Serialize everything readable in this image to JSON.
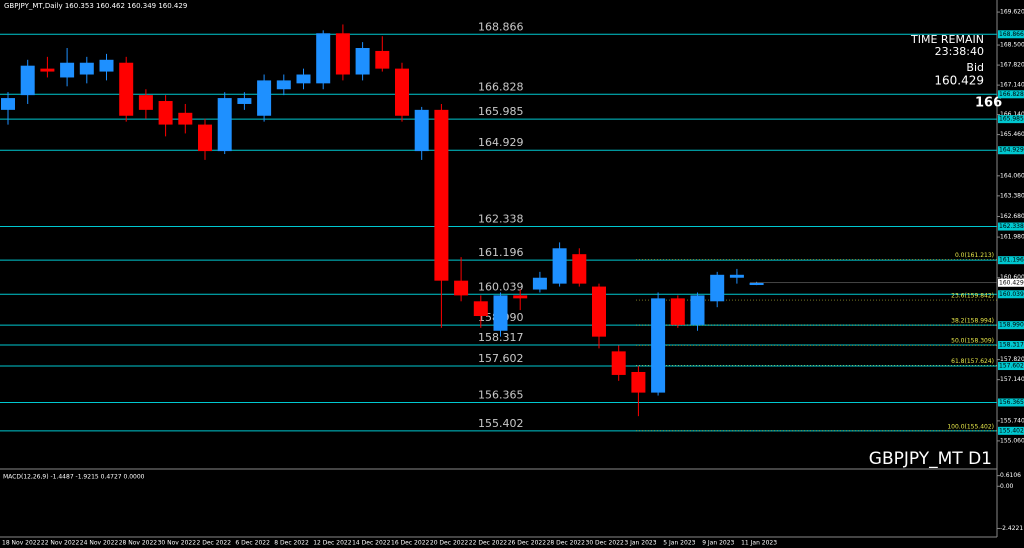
{
  "chart_data": {
    "type": "candlestick",
    "title": "GBPJPY_MT,Daily  160.353 160.462 160.349 160.429",
    "symbol_label": "GBPJPY_MT D1",
    "time_remain_label": "TIME REMAIN",
    "time_remain": "23:38:40",
    "bid_label": "Bid",
    "bid": 160.429,
    "price_badge": "166",
    "up_color": "#1e90ff",
    "down_color": "#ff0000",
    "level_color": "#00c8d0",
    "fib_color": "#e8e84a",
    "ylim": [
      154.14,
      170.03
    ],
    "yticks": [
      {
        "value": 169.62,
        "label": "169.620"
      },
      {
        "value": 168.5,
        "label": "168.500"
      },
      {
        "value": 167.82,
        "label": "167.820"
      },
      {
        "value": 167.14,
        "label": "167.140"
      },
      {
        "value": 166.14,
        "label": "166.140"
      },
      {
        "value": 165.46,
        "label": "165.460"
      },
      {
        "value": 164.06,
        "label": "164.060"
      },
      {
        "value": 163.38,
        "label": "163.380"
      },
      {
        "value": 162.68,
        "label": "162.680"
      },
      {
        "value": 161.98,
        "label": "161.980"
      },
      {
        "value": 160.6,
        "label": "160.600"
      },
      {
        "value": 157.82,
        "label": "157.820"
      },
      {
        "value": 157.14,
        "label": "157.140"
      },
      {
        "value": 155.74,
        "label": "155.740"
      },
      {
        "value": 155.06,
        "label": "155.060"
      }
    ],
    "levels": [
      168.866,
      166.828,
      165.985,
      164.929,
      162.338,
      161.196,
      160.039,
      {
        "value": 158.99,
        "label": "158.990"
      },
      158.317,
      157.602,
      156.365,
      155.402
    ],
    "fib": [
      {
        "level": 161.213,
        "label": "0.0(161.213)"
      },
      {
        "level": 159.842,
        "label": "23.6(159.842)"
      },
      {
        "level": 158.994,
        "label": "38.2(158.994)"
      },
      {
        "level": 158.309,
        "label": "50.0(158.309)"
      },
      {
        "level": 157.624,
        "label": "61.8(157.624)"
      },
      {
        "level": 155.402,
        "label": "100.0(155.402)"
      }
    ],
    "open": [
      166.3,
      166.8,
      167.7,
      167.4,
      167.5,
      167.6,
      167.9,
      166.8,
      166.6,
      166.2,
      165.8,
      164.9,
      166.5,
      166.1,
      167.0,
      167.2,
      167.2,
      168.9,
      167.5,
      168.3,
      167.7,
      164.9,
      166.3,
      160.5,
      159.8,
      158.8,
      160.0,
      160.2,
      160.4,
      161.4,
      160.3,
      158.1,
      157.4,
      156.7,
      159.9,
      159.0,
      159.8,
      160.6,
      160.353
    ],
    "high": [
      166.9,
      168.0,
      168.1,
      168.4,
      168.1,
      168.2,
      168.1,
      167.0,
      166.8,
      166.5,
      166.0,
      166.9,
      166.9,
      167.5,
      167.5,
      167.7,
      169.0,
      169.2,
      168.6,
      168.8,
      167.9,
      166.4,
      166.5,
      161.3,
      160.0,
      160.1,
      160.2,
      160.8,
      161.8,
      161.6,
      160.4,
      158.3,
      157.6,
      160.1,
      160.0,
      160.1,
      160.8,
      160.9,
      160.462
    ],
    "low": [
      165.8,
      166.5,
      167.4,
      167.1,
      167.2,
      167.3,
      165.9,
      166.0,
      165.4,
      165.5,
      164.6,
      164.8,
      166.3,
      165.9,
      166.8,
      167.0,
      167.0,
      167.3,
      167.3,
      167.6,
      165.9,
      164.6,
      158.9,
      159.8,
      158.9,
      158.6,
      159.5,
      160.1,
      160.3,
      160.3,
      158.2,
      157.1,
      155.9,
      156.6,
      158.9,
      158.8,
      159.6,
      160.4,
      160.349
    ],
    "close": [
      166.7,
      167.8,
      167.6,
      167.9,
      167.9,
      168.0,
      166.1,
      166.3,
      165.8,
      165.8,
      164.9,
      166.7,
      166.7,
      167.3,
      167.3,
      167.5,
      168.9,
      167.5,
      168.4,
      167.7,
      166.1,
      166.3,
      160.5,
      160.0,
      159.3,
      160.0,
      159.9,
      160.6,
      161.6,
      160.4,
      158.6,
      157.3,
      156.7,
      159.9,
      159.0,
      160.0,
      160.7,
      160.7,
      160.429
    ],
    "x_labels": [
      "18 Nov 2022",
      "22 Nov 2022",
      "24 Nov 2022",
      "28 Nov 2022",
      "30 Nov 2022",
      "2 Dec 2022",
      "6 Dec 2022",
      "8 Dec 2022",
      "12 Dec 2022",
      "14 Dec 2022",
      "16 Dec 2022",
      "20 Dec 2022",
      "22 Dec 2022",
      "26 Dec 2022",
      "28 Dec 2022",
      "30 Dec 2022",
      "3 Jan 2023",
      "5 Jan 2023",
      "9 Jan 2023",
      "11 Jan 2023"
    ],
    "macd": {
      "label": "MACD(12,26,9) -1.4487 -1.9215 0.4727 0.0000",
      "ylim": [
        -2.855,
        0.935
      ],
      "yticks": [
        0.6106,
        {
          "value": 0,
          "label": "0.00"
        },
        -2.4221
      ]
    }
  }
}
